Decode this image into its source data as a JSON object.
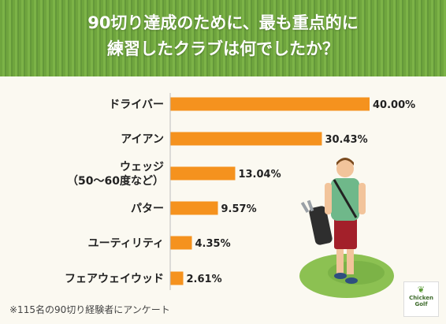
{
  "header": {
    "title_line1": "90切り達成のために、最も重点的に",
    "title_line2": "練習したクラブは何でしたか？"
  },
  "chart_data": {
    "type": "bar",
    "orientation": "horizontal",
    "categories": [
      [
        "ドライバー"
      ],
      [
        "アイアン"
      ],
      [
        "ウェッジ",
        "（50〜60度など）"
      ],
      [
        "パター"
      ],
      [
        "ユーティリティ"
      ],
      [
        "フェアウェイウッド"
      ]
    ],
    "values": [
      40.0,
      30.43,
      13.04,
      9.57,
      4.35,
      2.61
    ],
    "value_labels": [
      "40.00%",
      "30.43%",
      "13.04%",
      "9.57%",
      "4.35%",
      "2.61%"
    ],
    "xlim": [
      0,
      40
    ],
    "bar_color": "#f5921e",
    "grid": false,
    "legend": "none"
  },
  "footnote": "※115名の90切り経験者にアンケート",
  "logo": {
    "line1": "Chicken",
    "line2": "Golf"
  },
  "colors": {
    "header_green": "#6fa53e",
    "background": "#fbf9f1",
    "bar": "#f5921e",
    "text": "#222222"
  }
}
